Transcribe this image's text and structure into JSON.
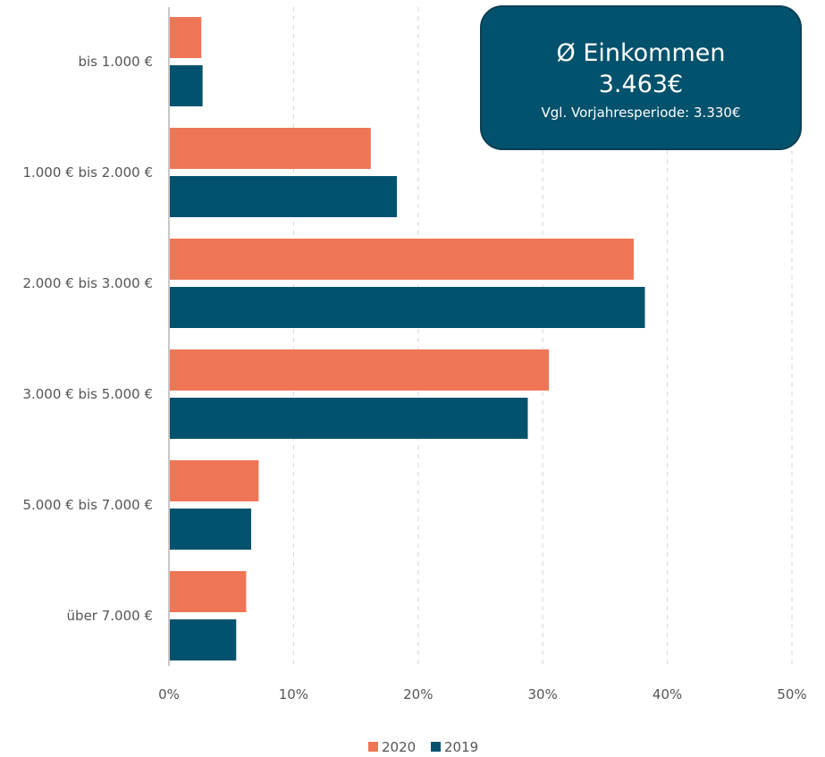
{
  "colors": {
    "series_2020": "#ee7656",
    "series_2019": "#02526d",
    "grid": "#d6d6d6",
    "axis": "#c8c8c8",
    "text": "#555555",
    "box_fill": "#02526d",
    "box_border": "#0a3f54",
    "box_text": "#ffffff"
  },
  "info_box": {
    "title": "Ø Einkommen",
    "value": "3.463€",
    "comparison": "Vgl. Vorjahresperiode: 3.330€"
  },
  "chart_data": {
    "type": "bar",
    "orientation": "horizontal",
    "categories": [
      "bis 1.000 €",
      "1.000 € bis 2.000 €",
      "2.000 € bis 3.000 €",
      "3.000 € bis 5.000 €",
      "5.000 € bis 7.000 €",
      "über 7.000 €"
    ],
    "series": [
      {
        "name": "2020",
        "color": "#ee7656",
        "values": [
          2.6,
          16.2,
          37.3,
          30.5,
          7.2,
          6.2
        ]
      },
      {
        "name": "2019",
        "color": "#02526d",
        "values": [
          2.7,
          18.3,
          38.2,
          28.8,
          6.6,
          5.4
        ]
      }
    ],
    "xlim": [
      0,
      50
    ],
    "x_ticks": [
      0,
      10,
      20,
      30,
      40,
      50
    ],
    "x_tick_labels": [
      "0%",
      "10%",
      "20%",
      "30%",
      "40%",
      "50%"
    ],
    "grid": "vertical dashed",
    "legend": "bottom-center",
    "title": "",
    "xlabel": "",
    "ylabel": ""
  }
}
